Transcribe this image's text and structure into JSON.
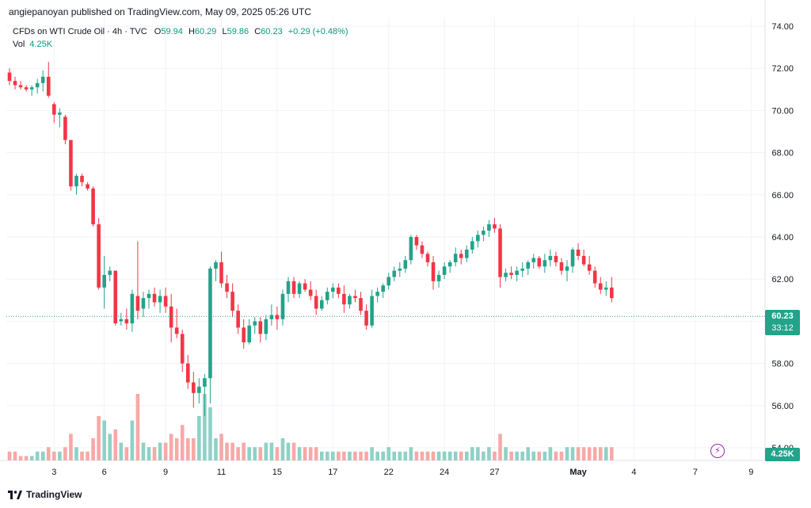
{
  "header": {
    "publisher": "angiepanoyan published on TradingView.com, May 09, 2025 05:26 UTC"
  },
  "legend": {
    "symbol": "CFDs on WTI Crude Oil · 4h · TVC",
    "open_label": "O",
    "open": "59.94",
    "high_label": "H",
    "high": "60.29",
    "low_label": "L",
    "low": "59.86",
    "close_label": "C",
    "close": "60.23",
    "change": "+0.29 (+0.48%)",
    "vol_label": "Vol",
    "vol_value": "4.25K"
  },
  "badges": {
    "price": "60.23",
    "countdown": "33:12",
    "volume": "4.25K"
  },
  "footer": {
    "brand": "TradingView"
  },
  "colors": {
    "up": "#22a38a",
    "down": "#f23645",
    "up_vol": "#8fd1c6",
    "down_vol": "#f7a9a7",
    "grid": "#f0f3fa",
    "price_line": "#22a38a"
  },
  "chart_data": {
    "type": "candlestick",
    "title": "CFDs on WTI Crude Oil",
    "interval": "4h",
    "ylim": [
      53.5,
      74.4
    ],
    "y_ticks": [
      "74.00",
      "72.00",
      "70.00",
      "68.00",
      "66.00",
      "64.00",
      "62.00",
      "60.00",
      "58.00",
      "56.00",
      "54.00"
    ],
    "x_ticks": [
      {
        "label": "3",
        "index": 8
      },
      {
        "label": "6",
        "index": 17
      },
      {
        "label": "9",
        "index": 28
      },
      {
        "label": "11",
        "index": 38
      },
      {
        "label": "15",
        "index": 48
      },
      {
        "label": "17",
        "index": 58
      },
      {
        "label": "22",
        "index": 68
      },
      {
        "label": "24",
        "index": 78
      },
      {
        "label": "27",
        "index": 87
      },
      {
        "label": "May",
        "index": 102
      },
      {
        "label": "4",
        "index": 112
      },
      {
        "label": "7",
        "index": 123
      },
      {
        "label": "9",
        "index": 133
      }
    ],
    "candles": [
      [
        71.8,
        72.0,
        71.2,
        71.4,
        2
      ],
      [
        71.4,
        71.6,
        71.0,
        71.2,
        2
      ],
      [
        71.2,
        71.4,
        71.0,
        71.1,
        1
      ],
      [
        71.1,
        71.2,
        70.9,
        71.0,
        1
      ],
      [
        71.0,
        71.2,
        70.7,
        71.1,
        1
      ],
      [
        71.1,
        71.5,
        70.8,
        71.3,
        2
      ],
      [
        71.3,
        71.9,
        70.9,
        71.6,
        2
      ],
      [
        71.6,
        72.3,
        70.6,
        70.7,
        3
      ],
      [
        70.3,
        70.4,
        69.4,
        69.8,
        2
      ],
      [
        69.8,
        70.1,
        69.2,
        69.9,
        2
      ],
      [
        69.7,
        69.8,
        68.4,
        68.6,
        3
      ],
      [
        68.6,
        68.6,
        66.2,
        66.4,
        6
      ],
      [
        66.4,
        67.0,
        66.0,
        66.9,
        3
      ],
      [
        66.9,
        67.0,
        66.4,
        66.6,
        2
      ],
      [
        66.5,
        66.6,
        66.2,
        66.3,
        2
      ],
      [
        66.3,
        66.4,
        64.5,
        64.6,
        5
      ],
      [
        64.6,
        64.9,
        61.5,
        61.6,
        10
      ],
      [
        61.6,
        63.1,
        60.6,
        62.2,
        9
      ],
      [
        62.2,
        62.6,
        61.9,
        62.4,
        6
      ],
      [
        62.4,
        62.4,
        59.8,
        59.9,
        7
      ],
      [
        60.0,
        60.4,
        59.8,
        60.1,
        4
      ],
      [
        60.1,
        60.6,
        59.6,
        59.9,
        3
      ],
      [
        59.9,
        61.5,
        59.5,
        61.3,
        9
      ],
      [
        61.2,
        63.8,
        60.1,
        60.5,
        15
      ],
      [
        60.6,
        61.4,
        60.2,
        61.1,
        4
      ],
      [
        61.1,
        61.5,
        60.6,
        61.3,
        3
      ],
      [
        61.3,
        61.6,
        60.7,
        60.9,
        3
      ],
      [
        60.9,
        61.5,
        60.4,
        61.2,
        4
      ],
      [
        61.2,
        61.6,
        60.4,
        60.7,
        4
      ],
      [
        60.7,
        61.3,
        59.0,
        59.7,
        6
      ],
      [
        59.7,
        60.6,
        59.2,
        59.4,
        5
      ],
      [
        59.4,
        59.6,
        57.6,
        58.0,
        8
      ],
      [
        58.0,
        58.4,
        56.8,
        57.1,
        5
      ],
      [
        57.1,
        57.6,
        55.9,
        56.6,
        5
      ],
      [
        56.6,
        57.3,
        56.1,
        56.9,
        10
      ],
      [
        56.9,
        57.5,
        55.5,
        57.3,
        15
      ],
      [
        57.3,
        62.6,
        56.1,
        62.5,
        12
      ],
      [
        62.5,
        62.9,
        61.9,
        62.8,
        5
      ],
      [
        62.8,
        63.3,
        61.6,
        61.8,
        6
      ],
      [
        61.8,
        62.2,
        61.1,
        61.4,
        4
      ],
      [
        61.4,
        61.8,
        60.2,
        60.5,
        4
      ],
      [
        60.5,
        60.8,
        59.4,
        59.7,
        3
      ],
      [
        59.7,
        60.1,
        58.7,
        59.0,
        4
      ],
      [
        59.0,
        60.1,
        58.9,
        59.8,
        3
      ],
      [
        59.8,
        60.2,
        59.4,
        60.0,
        3
      ],
      [
        60.0,
        60.2,
        59.0,
        59.4,
        3
      ],
      [
        59.4,
        60.3,
        59.1,
        60.1,
        4
      ],
      [
        60.1,
        60.8,
        59.8,
        60.3,
        4
      ],
      [
        60.3,
        60.7,
        59.6,
        60.1,
        3
      ],
      [
        60.1,
        61.5,
        59.8,
        61.3,
        5
      ],
      [
        61.3,
        62.1,
        60.9,
        61.9,
        4
      ],
      [
        61.9,
        62.1,
        61.1,
        61.3,
        4
      ],
      [
        61.3,
        61.9,
        61.1,
        61.8,
        3
      ],
      [
        61.8,
        62.0,
        61.4,
        61.5,
        3
      ],
      [
        61.5,
        61.9,
        61.0,
        61.2,
        3
      ],
      [
        61.2,
        61.5,
        60.3,
        60.6,
        3
      ],
      [
        60.6,
        61.2,
        60.5,
        61.0,
        2
      ],
      [
        61.0,
        61.6,
        60.8,
        61.4,
        2
      ],
      [
        61.4,
        61.8,
        61.1,
        61.6,
        2
      ],
      [
        61.6,
        61.8,
        61.1,
        61.3,
        2
      ],
      [
        61.3,
        61.7,
        60.4,
        60.8,
        2
      ],
      [
        60.8,
        61.3,
        60.6,
        61.2,
        2
      ],
      [
        61.2,
        61.5,
        60.9,
        61.1,
        2
      ],
      [
        61.1,
        61.4,
        60.3,
        60.5,
        2
      ],
      [
        60.5,
        60.8,
        59.6,
        59.8,
        2
      ],
      [
        59.8,
        61.5,
        59.7,
        61.2,
        3
      ],
      [
        61.2,
        61.6,
        60.9,
        61.4,
        2
      ],
      [
        61.4,
        61.8,
        61.1,
        61.7,
        2
      ],
      [
        61.7,
        62.3,
        61.5,
        62.1,
        3
      ],
      [
        62.1,
        62.6,
        61.9,
        62.4,
        2
      ],
      [
        62.4,
        62.8,
        62.1,
        62.5,
        2
      ],
      [
        62.5,
        63.1,
        62.3,
        62.9,
        2
      ],
      [
        62.9,
        64.1,
        62.7,
        64.0,
        3
      ],
      [
        64.0,
        64.1,
        63.4,
        63.6,
        2
      ],
      [
        63.6,
        63.8,
        63.0,
        63.2,
        2
      ],
      [
        63.2,
        63.3,
        62.6,
        62.8,
        2
      ],
      [
        62.8,
        63.1,
        61.5,
        61.9,
        2
      ],
      [
        61.9,
        62.4,
        61.6,
        62.2,
        2
      ],
      [
        62.2,
        62.8,
        62.0,
        62.6,
        2
      ],
      [
        62.6,
        62.9,
        62.3,
        62.8,
        2
      ],
      [
        62.8,
        63.5,
        62.6,
        63.2,
        2
      ],
      [
        63.2,
        63.4,
        62.7,
        63.0,
        2
      ],
      [
        63.0,
        63.6,
        62.8,
        63.4,
        2
      ],
      [
        63.4,
        64.0,
        63.2,
        63.8,
        3
      ],
      [
        63.8,
        64.3,
        63.5,
        64.1,
        3
      ],
      [
        64.1,
        64.5,
        63.8,
        64.3,
        2
      ],
      [
        64.3,
        64.8,
        64.0,
        64.6,
        3
      ],
      [
        64.6,
        64.9,
        64.2,
        64.4,
        2
      ],
      [
        64.4,
        64.6,
        61.6,
        62.1,
        6
      ],
      [
        62.1,
        62.5,
        61.9,
        62.3,
        3
      ],
      [
        62.3,
        62.6,
        62.0,
        62.2,
        2
      ],
      [
        62.2,
        62.6,
        61.9,
        62.4,
        2
      ],
      [
        62.4,
        62.8,
        62.1,
        62.5,
        2
      ],
      [
        62.5,
        62.9,
        62.2,
        62.8,
        3
      ],
      [
        62.8,
        63.2,
        62.5,
        63.0,
        2
      ],
      [
        63.0,
        63.1,
        62.5,
        62.6,
        2
      ],
      [
        62.6,
        63.2,
        62.3,
        62.9,
        2
      ],
      [
        62.9,
        63.4,
        62.6,
        63.1,
        3
      ],
      [
        63.1,
        63.3,
        62.6,
        62.8,
        2
      ],
      [
        62.8,
        63.0,
        62.2,
        62.4,
        2
      ],
      [
        62.4,
        62.9,
        61.9,
        62.6,
        3
      ],
      [
        62.6,
        63.5,
        62.3,
        63.4,
        3
      ],
      [
        63.4,
        63.7,
        62.9,
        63.1,
        3
      ],
      [
        63.1,
        63.4,
        62.6,
        62.7,
        3
      ],
      [
        62.7,
        63.1,
        62.2,
        62.4,
        3
      ],
      [
        62.4,
        62.6,
        61.6,
        61.8,
        3
      ],
      [
        61.8,
        62.1,
        61.3,
        61.5,
        3
      ],
      [
        61.5,
        61.9,
        61.2,
        61.6,
        3
      ],
      [
        61.6,
        62.1,
        60.9,
        61.1,
        3
      ]
    ]
  }
}
